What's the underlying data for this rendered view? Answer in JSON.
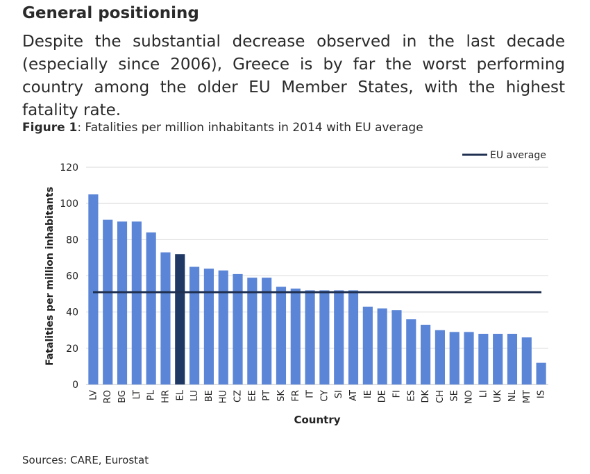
{
  "header": {
    "title": "General positioning",
    "intro": "Despite the substantial decrease observed in the last decade (especially since 2006), Greece is by far the worst performing country among the older EU Member States, with the highest fatality rate."
  },
  "figure": {
    "label": "Figure 1",
    "caption": ": Fatalities per million inhabitants in 2014 with EU average"
  },
  "sources": "Sources: CARE, Eurostat",
  "colors": {
    "bar": "#5b85d6",
    "highlight": "#1f3864",
    "average_line": "#1f3050",
    "grid": "#d9d9d9"
  },
  "chart_data": {
    "type": "bar",
    "title": "Fatalities per million inhabitants in 2014 with EU average",
    "xlabel": "Country",
    "ylabel": "Fatalities per million inhabitants",
    "ylim": [
      0,
      120
    ],
    "yticks": [
      0,
      20,
      40,
      60,
      80,
      100,
      120
    ],
    "grid": true,
    "legend_position": "top-right",
    "categories": [
      "LV",
      "RO",
      "BG",
      "LT",
      "PL",
      "HR",
      "EL",
      "LU",
      "BE",
      "HU",
      "CZ",
      "EE",
      "PT",
      "SK",
      "FR",
      "IT",
      "CY",
      "SI",
      "AT",
      "IE",
      "DE",
      "FI",
      "ES",
      "DK",
      "CH",
      "SE",
      "NO",
      "LI",
      "UK",
      "NL",
      "MT",
      "IS"
    ],
    "series": [
      {
        "name": "Fatalities per million inhabitants",
        "values": [
          105,
          91,
          90,
          90,
          84,
          73,
          72,
          65,
          64,
          63,
          61,
          59,
          59,
          54,
          53,
          52,
          52,
          52,
          52,
          43,
          42,
          41,
          36,
          33,
          30,
          29,
          29,
          28,
          28,
          28,
          26,
          12
        ]
      }
    ],
    "highlight_category": "EL",
    "reference_line": {
      "name": "EU average",
      "value": 51
    }
  }
}
